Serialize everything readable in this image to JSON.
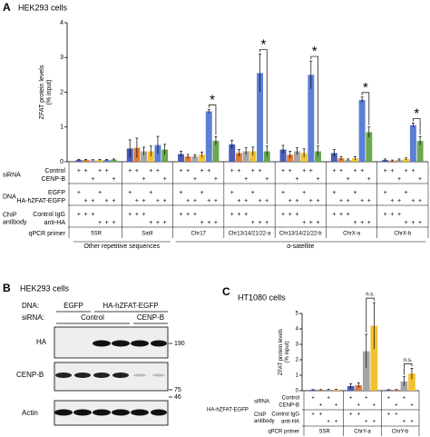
{
  "chart_data": [
    {
      "type": "bar",
      "panel_label": "A",
      "title": "HEK293 cells",
      "y_label": [
        "ZFAT protein levels",
        "(% input)"
      ],
      "ylim": [
        0,
        4
      ],
      "yticks": [
        0,
        1,
        2,
        3,
        4
      ],
      "categories": [
        "5SR",
        "SatII",
        "Chr17",
        "Chr13/14/21/22-a",
        "Chr13/14/21/22-b",
        "ChrX-a",
        "ChrX-b"
      ],
      "series": [
        {
          "color": "#4a5db8",
          "values": [
            0.05,
            0.38,
            0.22,
            0.5,
            0.35,
            0.25,
            0.05
          ],
          "errors": [
            0.02,
            0.25,
            0.08,
            0.12,
            0.12,
            0.1,
            0.03
          ]
        },
        {
          "color": "#e07b39",
          "values": [
            0.05,
            0.4,
            0.15,
            0.25,
            0.2,
            0.1,
            0.03
          ],
          "errors": [
            0.02,
            0.28,
            0.06,
            0.1,
            0.1,
            0.05,
            0.02
          ]
        },
        {
          "color": "#a5a5a5",
          "values": [
            0.04,
            0.3,
            0.15,
            0.3,
            0.3,
            0.05,
            0.05
          ],
          "errors": [
            0.02,
            0.12,
            0.05,
            0.1,
            0.1,
            0.03,
            0.03
          ]
        },
        {
          "color": "#f2c12e",
          "values": [
            0.05,
            0.3,
            0.2,
            0.3,
            0.25,
            0.1,
            0.08
          ],
          "errors": [
            0.02,
            0.15,
            0.08,
            0.12,
            0.12,
            0.05,
            0.03
          ]
        },
        {
          "color": "#5b7fd6",
          "values": [
            0.05,
            0.48,
            1.45,
            2.55,
            2.5,
            1.78,
            1.05
          ],
          "errors": [
            0.02,
            0.25,
            0.05,
            0.55,
            0.4,
            0.08,
            0.06
          ]
        },
        {
          "color": "#6aa84f",
          "values": [
            0.06,
            0.35,
            0.6,
            0.3,
            0.3,
            0.85,
            0.6
          ],
          "errors": [
            0.02,
            0.15,
            0.12,
            0.15,
            0.15,
            0.15,
            0.12
          ]
        }
      ],
      "significance": [
        null,
        null,
        "*",
        "*",
        "*",
        "*",
        "*"
      ],
      "conditions": [
        {
          "label_lines": [
            "siRNA"
          ],
          "rows": [
            {
              "label": "Control",
              "marks": [
                "+",
                "+",
                null,
                "+",
                "+",
                null
              ]
            },
            {
              "label": "CENP-B",
              "marks": [
                null,
                null,
                "+",
                null,
                null,
                "+"
              ]
            }
          ]
        },
        {
          "label_lines": [
            "DNA"
          ],
          "rows": [
            {
              "label": "EGFP",
              "marks": [
                "+",
                null,
                null,
                "+",
                null,
                null
              ]
            },
            {
              "label": "HA-hZFAT-EGFP",
              "marks": [
                null,
                "+",
                "+",
                null,
                "+",
                "+"
              ]
            }
          ]
        },
        {
          "label_lines": [
            "ChIP",
            "antibody"
          ],
          "rows": [
            {
              "label": "Control IgG",
              "marks": [
                "+",
                "+",
                "+",
                null,
                null,
                null
              ]
            },
            {
              "label": "anti-HA",
              "marks": [
                null,
                null,
                null,
                "+",
                "+",
                "+"
              ]
            }
          ]
        }
      ],
      "primer_label": "qPCR primer",
      "span_labels": [
        "Other repetitive sequences",
        "α-satellite"
      ]
    },
    {
      "type": "bar",
      "panel_label": "C",
      "title": "HT1080 cells",
      "y_label": [
        "ZFAT protein levels",
        "(% input)"
      ],
      "ylim": [
        0,
        5
      ],
      "yticks": [
        0,
        1,
        2,
        3,
        4,
        5
      ],
      "categories": [
        "5SR",
        "ChrY-a",
        "ChrY-b"
      ],
      "series": [
        {
          "color": "#4a5db8",
          "values": [
            0.05,
            0.3,
            0.05
          ],
          "errors": [
            0.02,
            0.15,
            0.02
          ]
        },
        {
          "color": "#e07b39",
          "values": [
            0.05,
            0.35,
            0.05
          ],
          "errors": [
            0.02,
            0.15,
            0.02
          ]
        },
        {
          "color": "#a5a5a5",
          "values": [
            0.06,
            2.55,
            0.6
          ],
          "errors": [
            0.02,
            1.1,
            0.3
          ]
        },
        {
          "color": "#f2c12e",
          "values": [
            0.07,
            4.2,
            1.1
          ],
          "errors": [
            0.02,
            1.5,
            0.35
          ]
        }
      ],
      "significance": [
        null,
        "n.s.",
        "n.s."
      ],
      "side_label": "HA-hZFAT-EGFP",
      "conditions": [
        {
          "label_lines": [
            "siRNA"
          ],
          "rows": [
            {
              "label": "Control",
              "marks": [
                "+",
                null,
                "+",
                null
              ]
            },
            {
              "label": "CENP-B",
              "marks": [
                null,
                "+",
                null,
                "+"
              ]
            }
          ]
        },
        {
          "label_lines": [
            "ChIP",
            "antibody"
          ],
          "rows": [
            {
              "label": "Control IgG",
              "marks": [
                "+",
                "+",
                null,
                null
              ]
            },
            {
              "label": "anti-HA",
              "marks": [
                null,
                null,
                "+",
                "+"
              ]
            }
          ]
        }
      ],
      "primer_label": "qPCR primer"
    }
  ],
  "blot": {
    "panel_label": "B",
    "title": "HEK293 cells",
    "dna_label": "DNA:",
    "dna_groups": [
      "EGFP",
      "HA-hZFAT-EGFP"
    ],
    "sirna_label": "siRNA:",
    "sirna_groups": [
      "Control",
      "CENP-B"
    ],
    "rows": [
      {
        "label": "HA",
        "marker": "190"
      },
      {
        "label": "CENP-B",
        "marker": "75"
      },
      {
        "label": "Actin",
        "marker": "46"
      }
    ]
  }
}
